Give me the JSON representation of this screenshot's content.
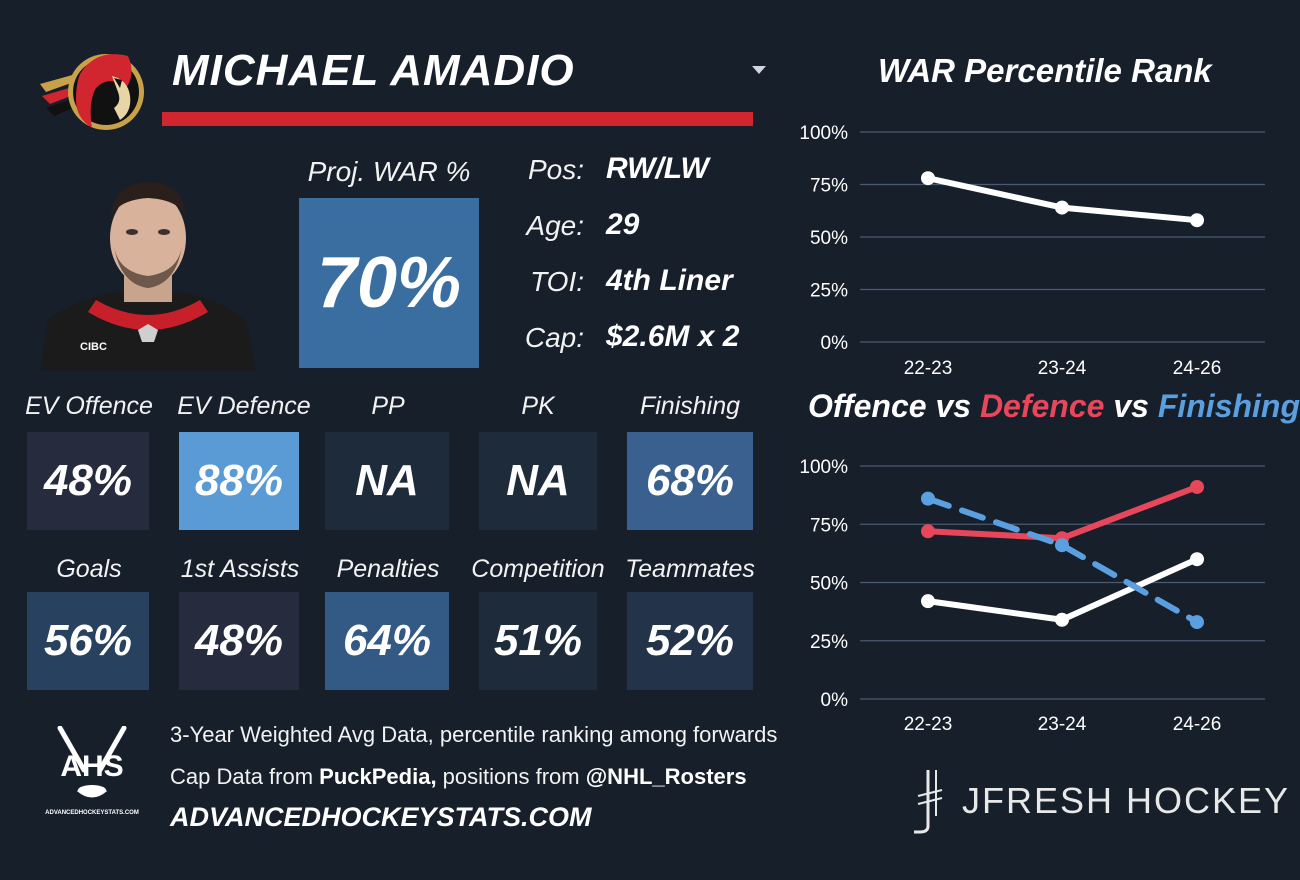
{
  "player": {
    "name": "MICHAEL AMADIO",
    "proj_war_label": "Proj. WAR %",
    "proj_war_value": "70%",
    "proj_war_color": "#3a6ea0"
  },
  "info": [
    {
      "label": "Pos:",
      "value": "RW/LW"
    },
    {
      "label": "Age:",
      "value": "29"
    },
    {
      "label": "TOI:",
      "value": "4th Liner"
    },
    {
      "label": "Cap:",
      "value": "$2.6M x 2"
    }
  ],
  "stats_row1": [
    {
      "label": "EV Offence",
      "value": "48%",
      "color": "#262c3d"
    },
    {
      "label": "EV Defence",
      "value": "88%",
      "color": "#5a9bd5"
    },
    {
      "label": "PP",
      "value": "NA",
      "color": "#1e2b3a"
    },
    {
      "label": "PK",
      "value": "NA",
      "color": "#1e2b3a"
    },
    {
      "label": "Finishing",
      "value": "68%",
      "color": "#3a6090"
    }
  ],
  "stats_row2": [
    {
      "label": "Goals",
      "value": "56%",
      "color": "#27415e"
    },
    {
      "label": "1st Assists",
      "value": "48%",
      "color": "#262c3d"
    },
    {
      "label": "Penalties",
      "value": "64%",
      "color": "#335a85"
    },
    {
      "label": "Competition",
      "value": "51%",
      "color": "#1e2b3a"
    },
    {
      "label": "Teammates",
      "value": "52%",
      "color": "#22334a"
    }
  ],
  "chart_titles": {
    "war": "WAR Percentile Rank",
    "ovd_offence": "Offence",
    "ovd_vs1": " vs ",
    "ovd_defence": "Defence",
    "ovd_vs2": " vs ",
    "ovd_finishing": "Finishing"
  },
  "colors": {
    "background": "#171f2b",
    "accent_red": "#d1262f",
    "defence_line": "#e8475b",
    "finishing_line": "#5a9fe0",
    "offence_line": "#ffffff",
    "grid": "#4a5a70"
  },
  "chart_data": [
    {
      "type": "line",
      "title": "WAR Percentile Rank",
      "categories": [
        "22-23",
        "23-24",
        "24-26"
      ],
      "y_ticks": [
        "0%",
        "25%",
        "50%",
        "75%",
        "100%"
      ],
      "ylim": [
        0,
        100
      ],
      "grid": true,
      "series": [
        {
          "values": [
            78,
            64,
            58
          ],
          "color": "#ffffff",
          "style": "solid"
        }
      ]
    },
    {
      "type": "line",
      "title": "Offence vs Defence vs Finishing",
      "categories": [
        "22-23",
        "23-24",
        "24-26"
      ],
      "y_ticks": [
        "0%",
        "25%",
        "50%",
        "75%",
        "100%"
      ],
      "ylim": [
        0,
        100
      ],
      "grid": true,
      "series": [
        {
          "name": "Offence",
          "values": [
            42,
            34,
            60
          ],
          "color": "#ffffff",
          "style": "solid"
        },
        {
          "name": "Defence",
          "values": [
            72,
            69,
            91
          ],
          "color": "#e8475b",
          "style": "solid"
        },
        {
          "name": "Finishing",
          "values": [
            86,
            66,
            33
          ],
          "color": "#5a9fe0",
          "style": "dashed"
        }
      ]
    }
  ],
  "footer": {
    "line1": "3-Year Weighted Avg Data, percentile ranking among forwards",
    "line2_a": "Cap Data from ",
    "line2_b": "PuckPedia,",
    "line2_c": " positions from ",
    "line2_d": "@NHL_Rosters",
    "site": "ADVANCEDHOCKEYSTATS.COM",
    "ahs_logo_text": "AHS",
    "ahs_logo_sub": "ADVANCEDHOCKEYSTATS.COM",
    "brand": "JFRESH HOCKEY"
  }
}
